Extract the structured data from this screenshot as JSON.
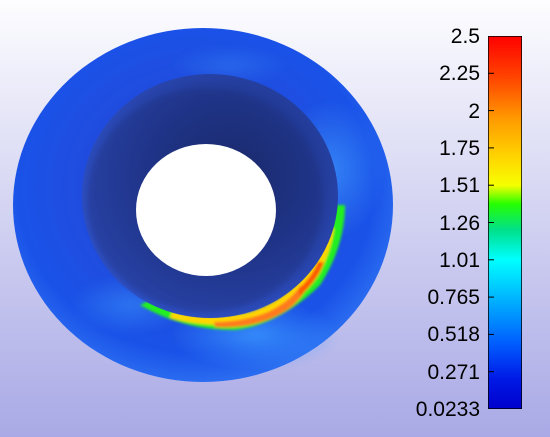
{
  "colorbar": {
    "min": 0.0233,
    "max": 2.5,
    "labels": [
      "2.5",
      "2.25",
      "2",
      "1.75",
      "1.51",
      "1.26",
      "1.01",
      "0.765",
      "0.518",
      "0.271",
      "0.0233"
    ],
    "colors_top_to_bottom": [
      "#ff0000",
      "#ff7a00",
      "#ffd200",
      "#f7ff00",
      "#26ff00",
      "#00e08a",
      "#00ffff",
      "#00b7ff",
      "#0060ff",
      "#0019e6",
      "#0000cc"
    ]
  },
  "scene": {
    "object": "annular-cylinder",
    "background_top": "#fdfdff",
    "background_bottom": "#a9a9e6",
    "hole_color": "#ffffff"
  }
}
